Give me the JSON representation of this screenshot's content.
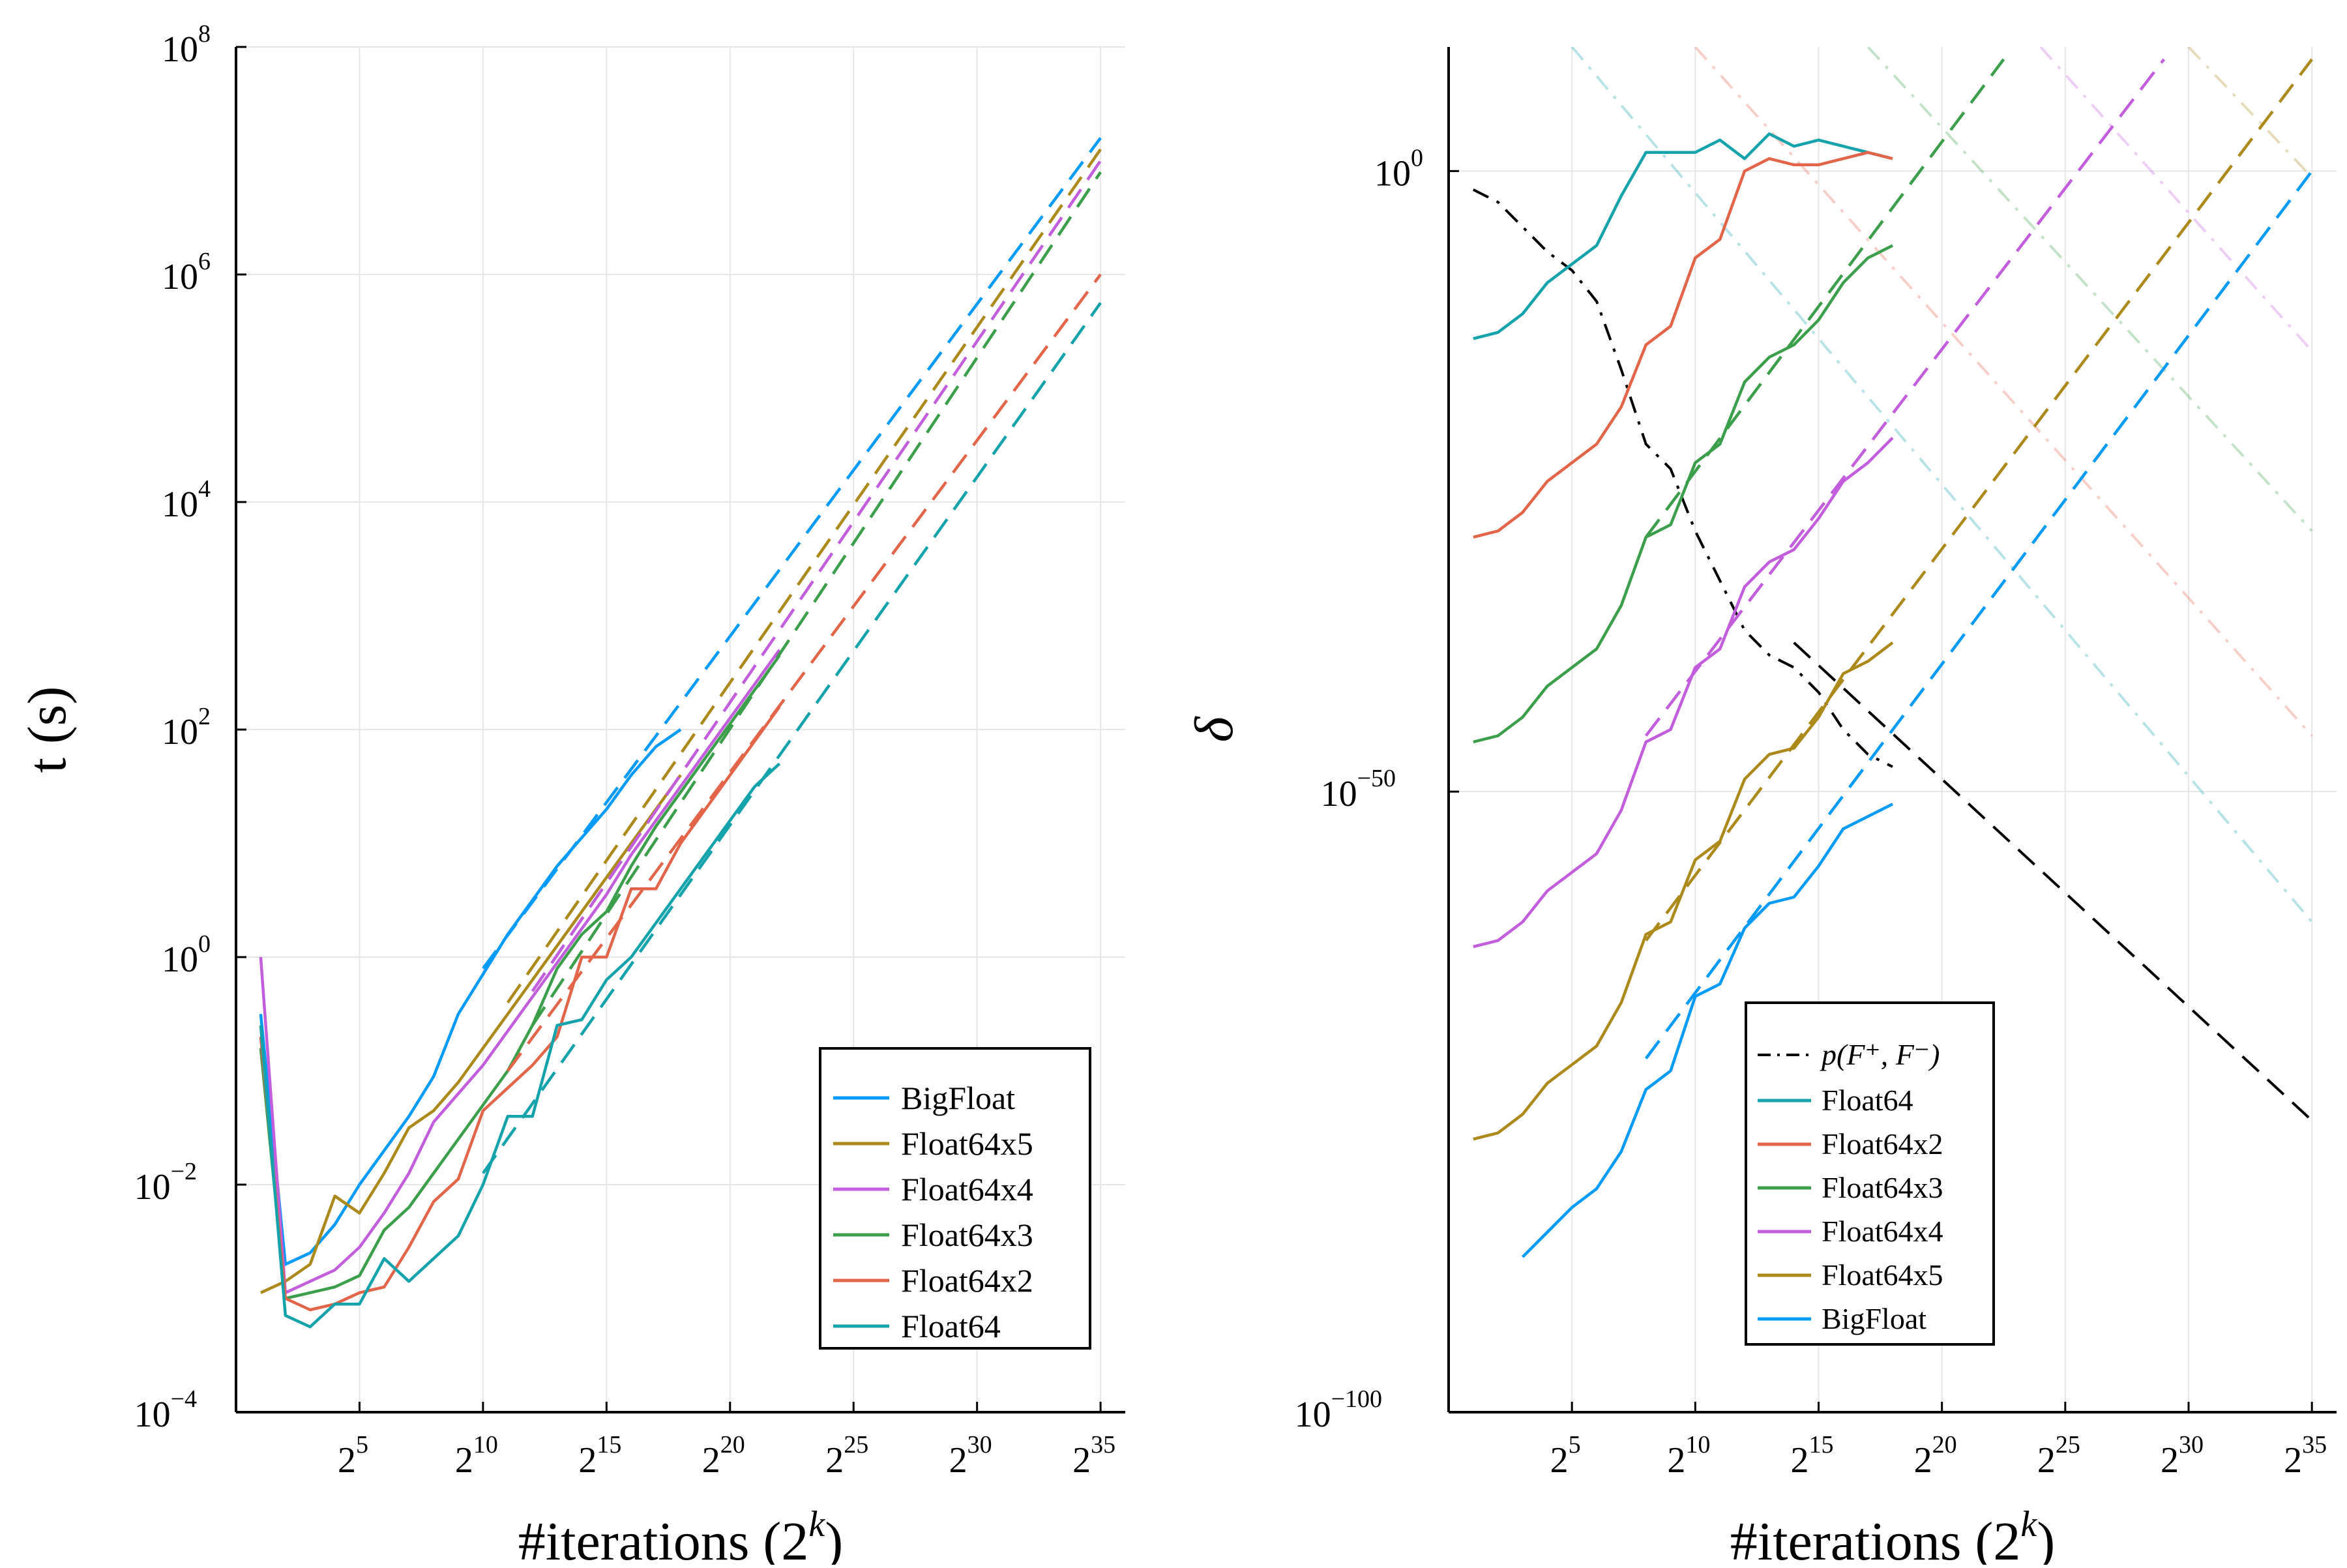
{
  "chart_data": [
    {
      "type": "line",
      "ylabel": "t (s)",
      "xlabel": "#iterations (2",
      "xlabel_sup": "k",
      "xlabel_close": ")",
      "x_scale": "log2",
      "y_scale": "log10",
      "xlim": [
        0,
        36
      ],
      "ylim": [
        -4,
        8
      ],
      "grid": true,
      "legend_position": "bottom-right",
      "xticks": [
        {
          "base": "2",
          "exp": "5",
          "k": 5
        },
        {
          "base": "2",
          "exp": "10",
          "k": 10
        },
        {
          "base": "2",
          "exp": "15",
          "k": 15
        },
        {
          "base": "2",
          "exp": "20",
          "k": 20
        },
        {
          "base": "2",
          "exp": "25",
          "k": 25
        },
        {
          "base": "2",
          "exp": "30",
          "k": 30
        },
        {
          "base": "2",
          "exp": "35",
          "k": 35
        }
      ],
      "yticks": [
        {
          "base": "10",
          "exp": "8",
          "v": 8
        },
        {
          "base": "10",
          "exp": "6",
          "v": 6
        },
        {
          "base": "10",
          "exp": "4",
          "v": 4
        },
        {
          "base": "10",
          "exp": "2",
          "v": 2
        },
        {
          "base": "10",
          "exp": "0",
          "v": 0
        },
        {
          "base": "10",
          "exp": "−2",
          "v": -2
        },
        {
          "base": "10",
          "exp": "−4",
          "v": -4
        }
      ],
      "legend": [
        "BigFloat",
        "Float64x5",
        "Float64x4",
        "Float64x3",
        "Float64x2",
        "Float64"
      ],
      "series": [
        {
          "name": "BigFloat",
          "color": "#009AFA",
          "k": [
            1,
            2,
            3,
            4,
            5,
            6,
            7,
            8,
            9,
            10,
            11,
            12,
            13,
            14,
            15,
            16,
            17,
            18
          ],
          "log10_t": [
            -0.5,
            -2.7,
            -2.6,
            -2.35,
            -2.0,
            -1.7,
            -1.4,
            -1.05,
            -0.5,
            -0.15,
            0.2,
            0.5,
            0.8,
            1.05,
            1.3,
            1.6,
            1.85,
            2.0
          ],
          "fit_k": [
            10,
            35
          ],
          "fit_log10_t": [
            -0.1,
            7.2
          ]
        },
        {
          "name": "Float64x5",
          "color": "#AB8A1B",
          "k": [
            1,
            2,
            3,
            4,
            5,
            6,
            7,
            8,
            9,
            10,
            11,
            12,
            13,
            14,
            15,
            16,
            17,
            18
          ],
          "log10_t": [
            -2.95,
            -2.85,
            -2.7,
            -2.1,
            -2.25,
            -1.9,
            -1.5,
            -1.35,
            -1.1,
            -0.8,
            -0.5,
            -0.2,
            0.1,
            0.4,
            0.7,
            1.0,
            1.3,
            1.6
          ],
          "fit_k": [
            11,
            35
          ],
          "fit_log10_t": [
            -0.4,
            7.1
          ]
        },
        {
          "name": "Float64x4",
          "color": "#C25DDB",
          "k": [
            1,
            2,
            3,
            4,
            5,
            6,
            7,
            8,
            9,
            10,
            11,
            12,
            13,
            14,
            15,
            16,
            17,
            18,
            19,
            20,
            21,
            22
          ],
          "log10_t": [
            0.0,
            -2.95,
            -2.85,
            -2.75,
            -2.55,
            -2.25,
            -1.9,
            -1.45,
            -1.2,
            -0.95,
            -0.65,
            -0.35,
            -0.05,
            0.25,
            0.55,
            0.9,
            1.2,
            1.5,
            1.8,
            2.1,
            2.4,
            2.7
          ],
          "fit_k": [
            12,
            35
          ],
          "fit_log10_t": [
            -0.3,
            7.0
          ]
        },
        {
          "name": "Float64x3",
          "color": "#3B9E4A",
          "k": [
            1,
            2,
            3,
            4,
            5,
            6,
            7,
            8,
            9,
            10,
            11,
            12,
            13,
            14,
            15,
            16,
            17,
            18,
            19,
            20,
            21,
            22
          ],
          "log10_t": [
            -0.8,
            -3.0,
            -2.95,
            -2.9,
            -2.8,
            -2.4,
            -2.2,
            -1.9,
            -1.6,
            -1.3,
            -1.0,
            -0.6,
            -0.1,
            0.2,
            0.4,
            0.8,
            1.15,
            1.45,
            1.75,
            2.05,
            2.35,
            2.65
          ],
          "fit_k": [
            12,
            35
          ],
          "fit_log10_t": [
            -0.6,
            6.9
          ]
        },
        {
          "name": "Float64x2",
          "color": "#E2654A",
          "k": [
            1,
            2,
            3,
            4,
            5,
            6,
            7,
            8,
            9,
            10,
            11,
            12,
            13,
            14,
            15,
            16,
            17,
            18,
            19,
            20,
            21,
            22
          ],
          "log10_t": [
            -0.7,
            -3.0,
            -3.1,
            -3.05,
            -2.95,
            -2.9,
            -2.55,
            -2.15,
            -1.95,
            -1.35,
            -1.15,
            -0.95,
            -0.7,
            0.0,
            0.0,
            0.6,
            0.6,
            1.0,
            1.3,
            1.6,
            1.9,
            2.2
          ],
          "fit_k": [
            11,
            35
          ],
          "fit_log10_t": [
            -1.0,
            6.0
          ]
        },
        {
          "name": "Float64",
          "color": "#15A3AB",
          "k": [
            1,
            2,
            3,
            4,
            5,
            6,
            7,
            8,
            9,
            10,
            11,
            12,
            13,
            14,
            15,
            16,
            17,
            18,
            19,
            20,
            21,
            22
          ],
          "log10_t": [
            -0.6,
            -3.15,
            -3.25,
            -3.05,
            -3.05,
            -2.65,
            -2.85,
            -2.65,
            -2.45,
            -2.0,
            -1.4,
            -1.4,
            -0.6,
            -0.55,
            -0.2,
            0.0,
            0.3,
            0.6,
            0.9,
            1.2,
            1.5,
            1.7
          ],
          "fit_k": [
            10,
            35
          ],
          "fit_log10_t": [
            -1.9,
            5.75
          ]
        }
      ]
    },
    {
      "type": "line",
      "ylabel": "δ",
      "xlabel": "#iterations (2",
      "xlabel_sup": "k",
      "xlabel_close": ")",
      "x_scale": "log2",
      "y_scale": "log10",
      "xlim": [
        0,
        36
      ],
      "ylim": [
        -100,
        10
      ],
      "grid": true,
      "legend_position": "bottom-center",
      "xticks": [
        {
          "base": "2",
          "exp": "5",
          "k": 5
        },
        {
          "base": "2",
          "exp": "10",
          "k": 10
        },
        {
          "base": "2",
          "exp": "15",
          "k": 15
        },
        {
          "base": "2",
          "exp": "20",
          "k": 20
        },
        {
          "base": "2",
          "exp": "25",
          "k": 25
        },
        {
          "base": "2",
          "exp": "30",
          "k": 30
        },
        {
          "base": "2",
          "exp": "35",
          "k": 35
        }
      ],
      "yticks": [
        {
          "base": "10",
          "exp": "0",
          "v": 0
        },
        {
          "base": "10",
          "exp": "−50",
          "v": -50
        },
        {
          "base": "10",
          "exp": "−100",
          "v": -100
        }
      ],
      "legend_ref_label": "p(F⁺, F⁻)",
      "legend": [
        "Float64",
        "Float64x2",
        "Float64x3",
        "Float64x4",
        "Float64x5",
        "BigFloat"
      ],
      "reference": {
        "name": "p(F⁺, F⁻)",
        "color": "#000000",
        "k": [
          1,
          2,
          3,
          4,
          5,
          6,
          7,
          8,
          9,
          10,
          11,
          12,
          13,
          14,
          15,
          16,
          17,
          18
        ],
        "log10_delta": [
          -1.5,
          -2.5,
          -4.5,
          -6.5,
          -8.0,
          -10.5,
          -16,
          -22,
          -24,
          -29,
          -33,
          -37,
          -39,
          -40,
          -42,
          -45,
          -47,
          -48
        ],
        "fit_k": [
          14,
          35
        ],
        "fit_log10_delta": [
          -38,
          -76.5
        ]
      },
      "series": [
        {
          "name": "Float64",
          "color": "#15A3AB",
          "k": [
            1,
            2,
            3,
            4,
            5,
            6,
            7,
            8,
            9,
            10,
            11,
            12,
            13,
            14,
            15,
            16,
            17,
            18
          ],
          "log10_delta": [
            -13.5,
            -13,
            -11.5,
            -9,
            -7.5,
            -6,
            -2,
            1.5,
            1.5,
            1.5,
            2.5,
            1,
            3,
            2,
            2.5,
            2,
            1.5,
            1
          ],
          "fade_k": [
            5,
            35
          ],
          "fade_log10_delta": [
            10,
            -60.5
          ]
        },
        {
          "name": "Float64x2",
          "color": "#E2654A",
          "k": [
            1,
            2,
            3,
            4,
            5,
            6,
            7,
            8,
            9,
            10,
            11,
            12,
            13,
            14,
            15,
            16,
            17,
            18
          ],
          "log10_delta": [
            -29.5,
            -29,
            -27.5,
            -25,
            -23.5,
            -22,
            -19,
            -14,
            -12.5,
            -7,
            -5.5,
            0,
            1,
            0.5,
            0.5,
            1,
            1.5,
            1
          ],
          "fade_k": [
            10,
            35
          ],
          "fade_log10_delta": [
            10,
            -45.5
          ]
        },
        {
          "name": "Float64x3",
          "color": "#3B9E4A",
          "k": [
            1,
            2,
            3,
            4,
            5,
            6,
            7,
            8,
            9,
            10,
            11,
            12,
            13,
            14,
            15,
            16,
            17,
            18
          ],
          "log10_delta": [
            -46,
            -45.5,
            -44,
            -41.5,
            -40,
            -38.5,
            -35,
            -29.5,
            -28.5,
            -23.5,
            -22,
            -17,
            -15,
            -14,
            -12,
            -9,
            -7,
            -6
          ],
          "fade_k": [
            17,
            35
          ],
          "fade_log10_delta": [
            10,
            -29
          ],
          "fit_k": [
            8,
            22.5
          ],
          "fit_log10_delta": [
            -29.5,
            9
          ]
        },
        {
          "name": "Float64x4",
          "color": "#C25DDB",
          "k": [
            1,
            2,
            3,
            4,
            5,
            6,
            7,
            8,
            9,
            10,
            11,
            12,
            13,
            14,
            15,
            16,
            17,
            18
          ],
          "log10_delta": [
            -62.5,
            -62,
            -60.5,
            -58,
            -56.5,
            -55,
            -51.5,
            -46,
            -45,
            -40,
            -38.5,
            -33.5,
            -31.5,
            -30.5,
            -28,
            -25,
            -23.5,
            -21.5
          ],
          "fade_k": [
            24,
            35
          ],
          "fade_log10_delta": [
            10,
            -14.5
          ],
          "fit_k": [
            8,
            29
          ],
          "fit_log10_delta": [
            -45.5,
            9
          ]
        },
        {
          "name": "Float64x5",
          "color": "#AB8A1B",
          "k": [
            1,
            2,
            3,
            4,
            5,
            6,
            7,
            8,
            9,
            10,
            11,
            12,
            13,
            14,
            15,
            16,
            17,
            18
          ],
          "log10_delta": [
            -78,
            -77.5,
            -76,
            -73.5,
            -72,
            -70.5,
            -67,
            -61.5,
            -60.5,
            -55.5,
            -54,
            -49,
            -47,
            -46.5,
            -44,
            -40.5,
            -39.5,
            -38
          ],
          "fade_k": [
            30,
            35
          ],
          "fade_log10_delta": [
            10,
            -0.5
          ],
          "fit_k": [
            8,
            35
          ],
          "fit_log10_delta": [
            -62,
            9
          ]
        },
        {
          "name": "BigFloat",
          "color": "#009AFA",
          "k": [
            3,
            4,
            5,
            6,
            7,
            8,
            9,
            10,
            11,
            12,
            13,
            14,
            15,
            16,
            17,
            18
          ],
          "log10_delta": [
            -87.5,
            -85.5,
            -83.5,
            -82,
            -79,
            -74,
            -72.5,
            -66.5,
            -65.5,
            -61,
            -59,
            -58.5,
            -56,
            -53,
            -52,
            -51
          ],
          "fit_k": [
            8,
            35
          ],
          "fit_log10_delta": [
            -71.5,
            0
          ]
        }
      ]
    }
  ]
}
